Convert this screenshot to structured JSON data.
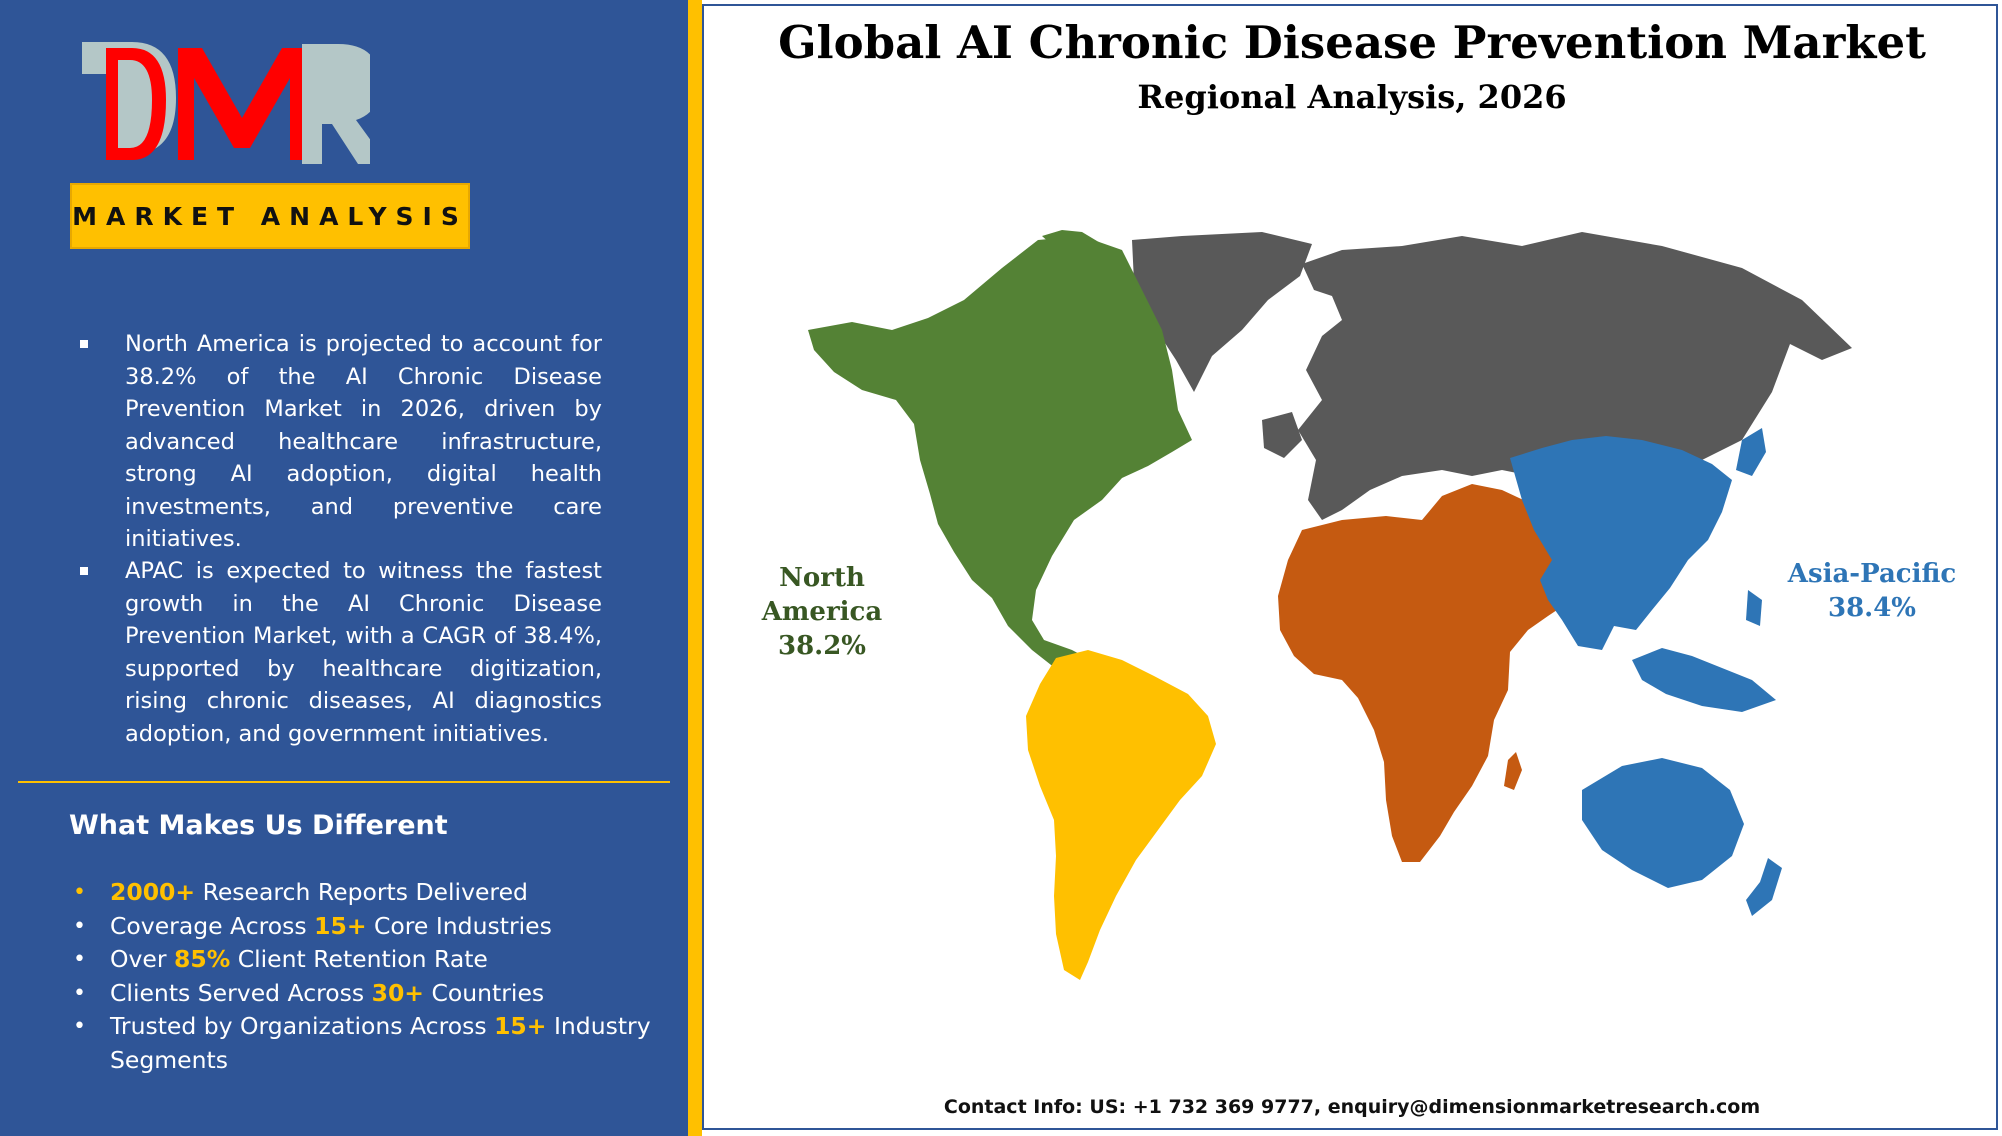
{
  "logo": {
    "text": "DMR",
    "letters": [
      "D",
      "M",
      "R"
    ],
    "colors": {
      "red": "#ff0000",
      "gray": "#b4c7c7"
    }
  },
  "badge": {
    "label": "MARKET ANALYSIS"
  },
  "insights": [
    {
      "text": "North America is projected to account for 38.2% of the AI Chronic Disease Prevention Market in 2026, driven by advanced healthcare infrastructure, strong AI adoption, digital health investments, and preventive care initiatives."
    },
    {
      "text": "APAC is expected to witness the fastest growth in the AI Chronic Disease Prevention Market, with a CAGR of 38.4%, supported by healthcare digitization, rising chronic diseases, AI diagnostics adoption, and government initiatives."
    }
  ],
  "different": {
    "title": "What Makes Us Different",
    "items": [
      {
        "pre": "",
        "hl": "2000+",
        "post": " Research Reports Delivered"
      },
      {
        "pre": "Coverage Across ",
        "hl": "15+",
        "post": " Core Industries"
      },
      {
        "pre": "Over ",
        "hl": "85%",
        "post": " Client Retention Rate"
      },
      {
        "pre": "Clients Served Across ",
        "hl": "30+",
        "post": " Countries"
      },
      {
        "pre": "Trusted by Organizations Across ",
        "hl": "15+",
        "post": " Industry Segments"
      }
    ]
  },
  "map": {
    "title": "Global AI Chronic Disease Prevention Market",
    "subtitle": "Regional Analysis, 2026",
    "regions": [
      {
        "name": "North America",
        "value": "38.2%",
        "color": "#548235"
      },
      {
        "name": "Asia-Pacific",
        "value": "38.4%",
        "color": "#2e75b6"
      },
      {
        "name": "",
        "value": "",
        "color": "#ffc000"
      },
      {
        "name": "",
        "value": "",
        "color": "#c55a11"
      },
      {
        "name": "",
        "value": "",
        "color": "#595959"
      }
    ]
  },
  "contact": "Contact Info: US: +1 732 369 9777, enquiry@dimensionmarketresearch.com",
  "colors": {
    "panel": "#2f5597",
    "accent": "#ffc000"
  }
}
